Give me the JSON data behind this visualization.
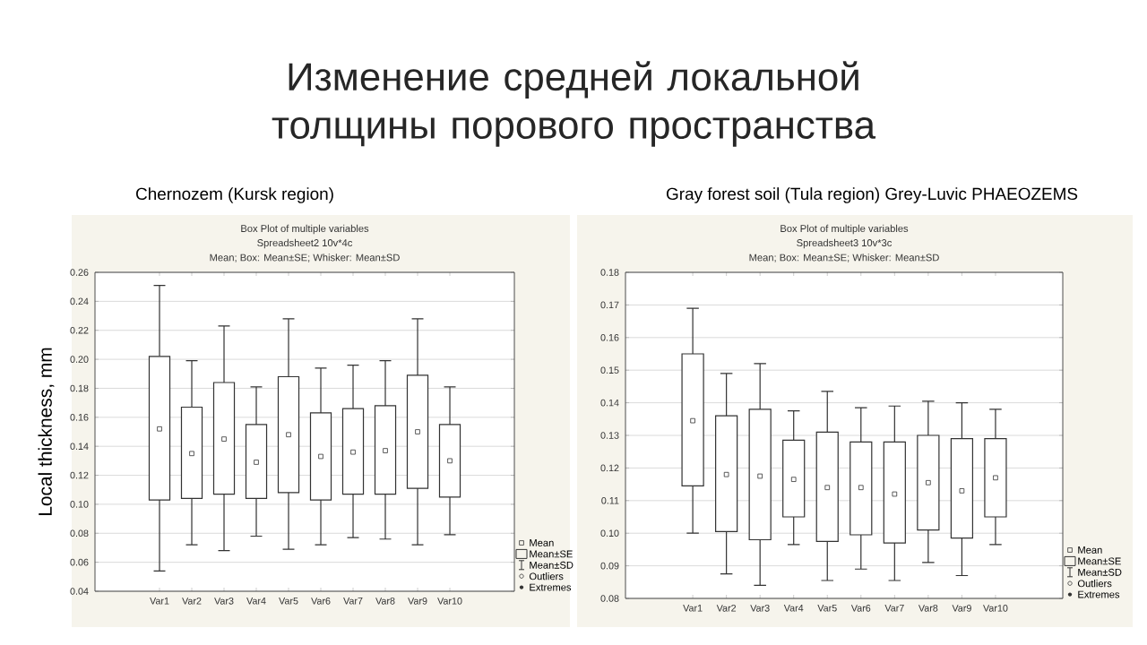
{
  "chart_data": [
    {
      "type": "box",
      "title": "Box Plot of multiple variables",
      "subtitle": "Spreadsheet2 10v*4c",
      "ylabel": "Local thickness, mm",
      "annotations": [
        "Mean; Box: Mean±SE; Whisker: Mean±SD",
        "Chernozem (Kursk region)",
        "Mean",
        "Mean±SE",
        "Mean±SD",
        "Outliers",
        "Extremes",
        "Изменение средней локальной толщины порового пространства"
      ],
      "categories": [
        "Var1",
        "Var2",
        "Var3",
        "Var4",
        "Var5",
        "Var6",
        "Var7",
        "Var8",
        "Var9",
        "Var10"
      ],
      "boxes": [
        {
          "low": 0.054,
          "q1": 0.103,
          "median": 0.152,
          "q3": 0.202,
          "high": 0.251
        },
        {
          "low": 0.072,
          "q1": 0.104,
          "median": 0.135,
          "q3": 0.167,
          "high": 0.199
        },
        {
          "low": 0.068,
          "q1": 0.107,
          "median": 0.145,
          "q3": 0.184,
          "high": 0.223
        },
        {
          "low": 0.078,
          "q1": 0.104,
          "median": 0.129,
          "q3": 0.155,
          "high": 0.181
        },
        {
          "low": 0.069,
          "q1": 0.108,
          "median": 0.148,
          "q3": 0.188,
          "high": 0.228
        },
        {
          "low": 0.072,
          "q1": 0.103,
          "median": 0.133,
          "q3": 0.163,
          "high": 0.194
        },
        {
          "low": 0.077,
          "q1": 0.107,
          "median": 0.136,
          "q3": 0.166,
          "high": 0.196
        },
        {
          "low": 0.076,
          "q1": 0.107,
          "median": 0.137,
          "q3": 0.168,
          "high": 0.199
        },
        {
          "low": 0.072,
          "q1": 0.111,
          "median": 0.15,
          "q3": 0.189,
          "high": 0.228
        },
        {
          "low": 0.079,
          "q1": 0.105,
          "median": 0.13,
          "q3": 0.155,
          "high": 0.181
        }
      ],
      "color": "#333333",
      "ylim": [
        0.04,
        0.26
      ],
      "yticks": [
        {
          "value": 0.04,
          "label": "0.04"
        },
        {
          "value": 0.06,
          "label": "0.06"
        },
        {
          "value": 0.08,
          "label": "0.08"
        },
        {
          "value": 0.1,
          "label": "0.10"
        },
        {
          "value": 0.12,
          "label": "0.12"
        },
        {
          "value": 0.14,
          "label": "0.14"
        },
        {
          "value": 0.16,
          "label": "0.16"
        },
        {
          "value": 0.18,
          "label": "0.18"
        },
        {
          "value": 0.2,
          "label": "0.20"
        },
        {
          "value": 0.22,
          "label": "0.22"
        },
        {
          "value": 0.24,
          "label": "0.24"
        },
        {
          "value": 0.26,
          "label": "0.26"
        }
      ],
      "grid": "y"
    },
    {
      "type": "box",
      "title": "Box Plot of multiple variables",
      "subtitle": "Spreadsheet3 10v*3c",
      "annotations": [
        "Mean; Box: Mean±SE; Whisker: Mean±SD",
        "Gray forest soil (Tula region) Grey-Luvic PHAEOZEMS",
        "Mean",
        "Mean±SE",
        "Mean±SD",
        "Outliers",
        "Extremes"
      ],
      "categories": [
        "Var1",
        "Var2",
        "Var3",
        "Var4",
        "Var5",
        "Var6",
        "Var7",
        "Var8",
        "Var9",
        "Var10"
      ],
      "boxes": [
        {
          "low": 0.1,
          "q1": 0.1145,
          "median": 0.1345,
          "q3": 0.155,
          "high": 0.169
        },
        {
          "low": 0.0875,
          "q1": 0.1005,
          "median": 0.118,
          "q3": 0.136,
          "high": 0.149
        },
        {
          "low": 0.084,
          "q1": 0.098,
          "median": 0.1175,
          "q3": 0.138,
          "high": 0.152
        },
        {
          "low": 0.0965,
          "q1": 0.105,
          "median": 0.1165,
          "q3": 0.1285,
          "high": 0.1375
        },
        {
          "low": 0.0855,
          "q1": 0.0975,
          "median": 0.114,
          "q3": 0.131,
          "high": 0.1435
        },
        {
          "low": 0.089,
          "q1": 0.0995,
          "median": 0.114,
          "q3": 0.128,
          "high": 0.1385
        },
        {
          "low": 0.0855,
          "q1": 0.097,
          "median": 0.112,
          "q3": 0.128,
          "high": 0.139
        },
        {
          "low": 0.091,
          "q1": 0.101,
          "median": 0.1155,
          "q3": 0.13,
          "high": 0.1405
        },
        {
          "low": 0.087,
          "q1": 0.0985,
          "median": 0.113,
          "q3": 0.129,
          "high": 0.14
        },
        {
          "low": 0.0965,
          "q1": 0.105,
          "median": 0.117,
          "q3": 0.129,
          "high": 0.138
        }
      ],
      "color": "#333333",
      "ylim": [
        0.08,
        0.18
      ],
      "yticks": [
        {
          "value": 0.08,
          "label": "0.08"
        },
        {
          "value": 0.09,
          "label": "0.09"
        },
        {
          "value": 0.1,
          "label": "0.10"
        },
        {
          "value": 0.11,
          "label": "0.11"
        },
        {
          "value": 0.12,
          "label": "0.12"
        },
        {
          "value": 0.13,
          "label": "0.13"
        },
        {
          "value": 0.14,
          "label": "0.14"
        },
        {
          "value": 0.15,
          "label": "0.15"
        },
        {
          "value": 0.16,
          "label": "0.16"
        },
        {
          "value": 0.17,
          "label": "0.17"
        },
        {
          "value": 0.18,
          "label": "0.18"
        }
      ],
      "grid": "y"
    }
  ]
}
